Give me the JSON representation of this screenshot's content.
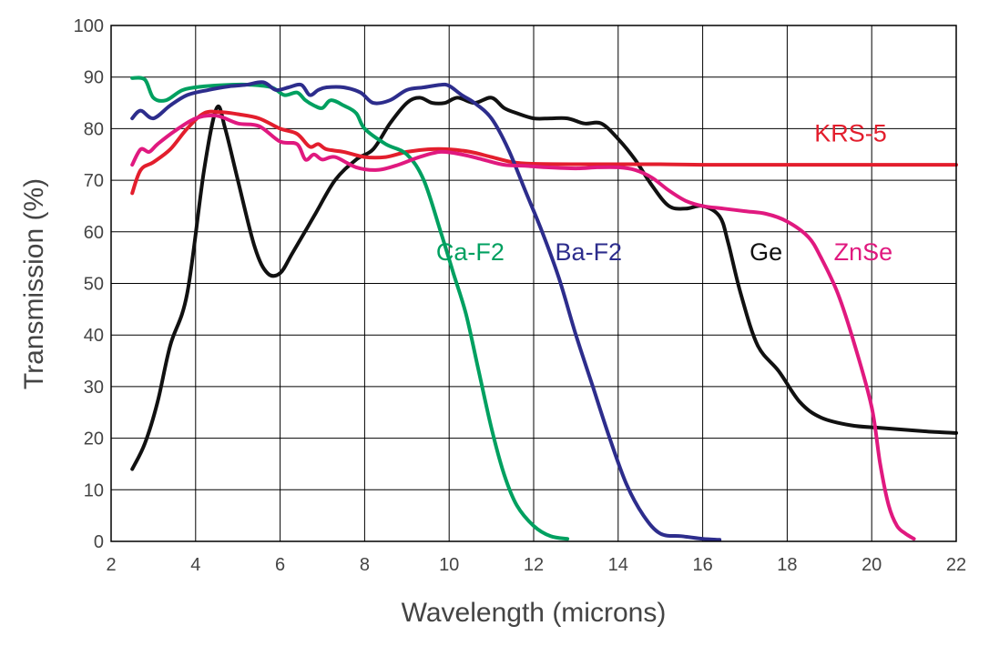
{
  "chart_data": {
    "type": "line",
    "xlabel": "Wavelength (microns)",
    "ylabel": "Transmission (%)",
    "xlim": [
      2,
      22
    ],
    "ylim": [
      0,
      100
    ],
    "xticks": [
      "2",
      "4",
      "6",
      "8",
      "10",
      "12",
      "14",
      "16",
      "18",
      "20",
      "22"
    ],
    "yticks": [
      "0",
      "10",
      "20",
      "30",
      "40",
      "50",
      "60",
      "70",
      "80",
      "90",
      "100"
    ],
    "grid": true,
    "series": [
      {
        "name": "Ge",
        "color": "#111111",
        "label_at": [
          17.5,
          54.5
        ],
        "x": [
          2.5,
          2.8,
          3.1,
          3.4,
          3.8,
          4.2,
          4.5,
          4.7,
          5.0,
          5.4,
          5.7,
          6.0,
          6.3,
          6.8,
          7.3,
          7.8,
          8.2,
          8.6,
          9.0,
          9.3,
          9.6,
          9.9,
          10.2,
          10.6,
          11.0,
          11.3,
          11.6,
          12.0,
          12.4,
          12.8,
          13.2,
          13.6,
          14.0,
          14.4,
          14.8,
          15.2,
          15.6,
          16.0,
          16.4,
          16.6,
          16.9,
          17.3,
          17.8,
          18.3,
          18.8,
          19.5,
          20.2,
          21.0,
          21.5,
          22.0
        ],
        "y": [
          14,
          19,
          27,
          38,
          48,
          72,
          84,
          80,
          70,
          57,
          52,
          52,
          56,
          63,
          70,
          74,
          76,
          81,
          85,
          86,
          85,
          85,
          86,
          85,
          86,
          84,
          83,
          82,
          82,
          82,
          81,
          81,
          78,
          74,
          69,
          65,
          64.5,
          65,
          63,
          58,
          48,
          38,
          33,
          27,
          24,
          22.5,
          22,
          21.5,
          21.2,
          21
        ]
      },
      {
        "name": "KRS-5",
        "color": "#e31e2d",
        "label_at": [
          19.5,
          77.5
        ],
        "x": [
          2.5,
          2.7,
          3.0,
          3.4,
          3.8,
          4.2,
          4.6,
          5.0,
          5.5,
          6.0,
          6.4,
          6.7,
          6.9,
          7.1,
          7.5,
          8.0,
          8.5,
          9.0,
          9.5,
          10.0,
          10.5,
          11.0,
          11.5,
          12.0,
          13.0,
          14.0,
          15.0,
          16.0,
          18.0,
          20.0,
          22.0
        ],
        "y": [
          67.5,
          72,
          73.5,
          76,
          80,
          83,
          83.2,
          82.8,
          82,
          80,
          79,
          76.5,
          77,
          76,
          75.5,
          74.5,
          74.5,
          75.5,
          76,
          76,
          75.5,
          74.5,
          73.5,
          73.2,
          73.1,
          73.1,
          73.1,
          73,
          73,
          73,
          73
        ]
      },
      {
        "name": "Ca-F2",
        "color": "#00a060",
        "label_at": [
          10.5,
          54.5
        ],
        "x": [
          2.5,
          2.8,
          3.0,
          3.3,
          3.7,
          4.2,
          4.8,
          5.3,
          5.8,
          6.1,
          6.4,
          6.6,
          6.8,
          7.0,
          7.2,
          7.5,
          7.8,
          8.0,
          8.5,
          9.0,
          9.4,
          9.8,
          10.1,
          10.4,
          10.7,
          11.0,
          11.3,
          11.6,
          12.0,
          12.4,
          12.8
        ],
        "y": [
          89.8,
          89.5,
          86,
          85.5,
          87.5,
          88.2,
          88.5,
          88.5,
          88,
          86.5,
          87,
          85.5,
          84.5,
          84,
          85.5,
          84.5,
          83,
          80,
          77,
          75,
          70,
          60,
          52,
          44,
          33,
          22,
          13,
          7,
          3,
          1,
          0.5
        ]
      },
      {
        "name": "Ba-F2",
        "color": "#2d2d8c",
        "label_at": [
          13.3,
          54.5
        ],
        "x": [
          2.5,
          2.7,
          3.0,
          3.4,
          3.8,
          4.3,
          4.8,
          5.2,
          5.6,
          5.9,
          6.2,
          6.5,
          6.7,
          6.9,
          7.1,
          7.5,
          7.9,
          8.2,
          8.6,
          9.0,
          9.4,
          9.8,
          10.0,
          10.3,
          10.6,
          11.0,
          11.4,
          11.8,
          12.2,
          12.6,
          13.0,
          13.4,
          13.8,
          14.2,
          14.6,
          15.0,
          15.5,
          16.0,
          16.4
        ],
        "y": [
          82,
          83.5,
          82,
          84.5,
          86.5,
          87.5,
          88.2,
          88.5,
          89,
          87.5,
          88,
          88.5,
          86.5,
          87.5,
          88,
          88,
          87,
          85,
          85.5,
          87.5,
          88,
          88.5,
          88.3,
          86.5,
          85,
          82,
          76,
          68,
          60,
          51,
          40,
          30,
          20,
          11,
          5,
          1.5,
          1,
          0.5,
          0.3
        ]
      },
      {
        "name": "ZnSe",
        "color": "#e0197f",
        "label_at": [
          19.8,
          54.5
        ],
        "x": [
          2.5,
          2.7,
          2.9,
          3.1,
          3.5,
          4.0,
          4.5,
          5.0,
          5.5,
          6.0,
          6.4,
          6.6,
          6.8,
          7.0,
          7.3,
          7.8,
          8.3,
          8.8,
          9.3,
          9.8,
          10.3,
          10.8,
          11.3,
          11.8,
          12.3,
          13.0,
          13.5,
          14.0,
          14.4,
          14.8,
          15.2,
          15.6,
          16.0,
          16.5,
          17.0,
          17.5,
          18.0,
          18.5,
          18.8,
          19.2,
          19.6,
          20.0,
          20.2,
          20.4,
          20.6,
          20.8,
          21.0
        ],
        "y": [
          73,
          76,
          75.5,
          77,
          79.5,
          82,
          82.5,
          81,
          80.5,
          77.5,
          77,
          74,
          75,
          74,
          74.5,
          72.5,
          72,
          73,
          74.5,
          75.5,
          75,
          74,
          73,
          72.8,
          72.5,
          72.3,
          72.5,
          72.5,
          72,
          70.5,
          68,
          66,
          65,
          64.5,
          64,
          63.5,
          62,
          59,
          55,
          48,
          38,
          26,
          15,
          7,
          3,
          1.5,
          0.5
        ]
      }
    ]
  }
}
